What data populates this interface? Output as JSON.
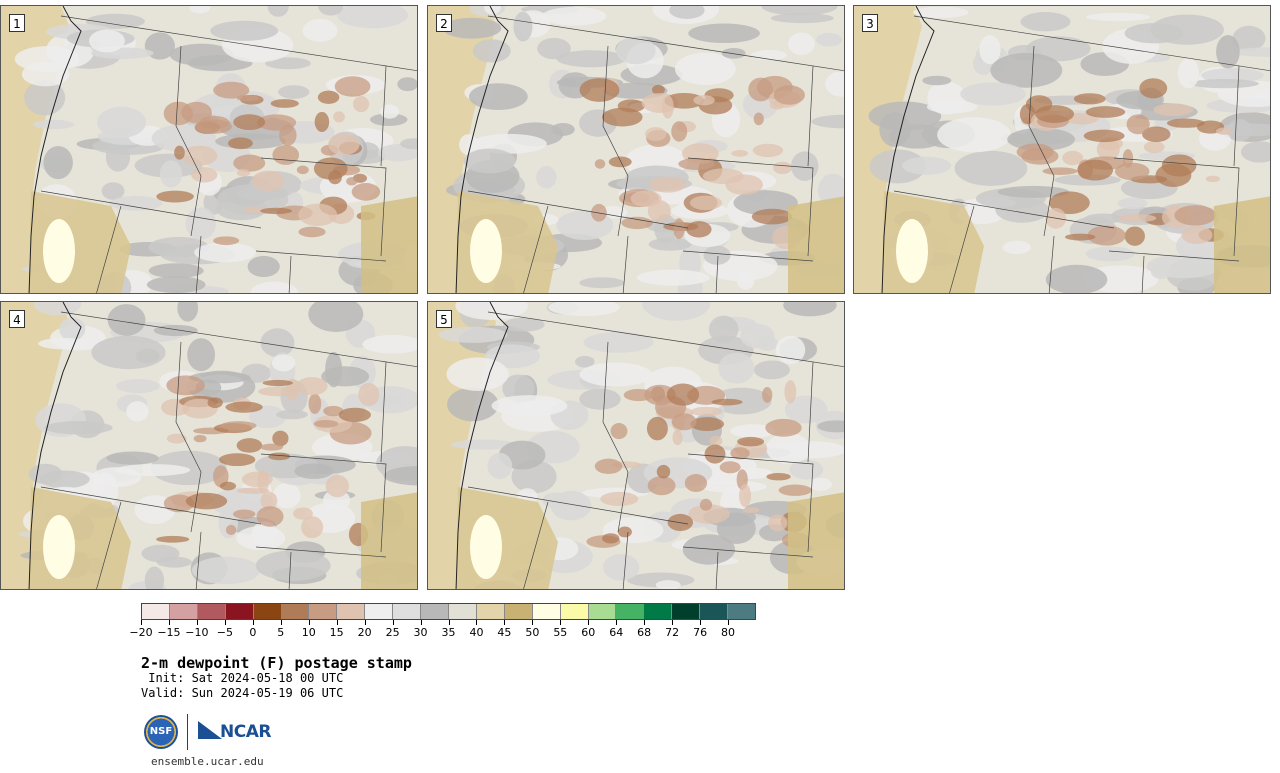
{
  "panels": [
    {
      "label": "1"
    },
    {
      "label": "2"
    },
    {
      "label": "3"
    },
    {
      "label": "4"
    },
    {
      "label": "5"
    }
  ],
  "colorbar": {
    "colors": [
      "#f5e9e7",
      "#d4a0a2",
      "#b05a5f",
      "#8a1520",
      "#8b4513",
      "#b07c58",
      "#c79c83",
      "#dfc3b0",
      "#eeeeee",
      "#dedede",
      "#b8b8b8",
      "#e2e0d4",
      "#e3d4a9",
      "#c8b173",
      "#fffde4",
      "#fafaa8",
      "#a8dc92",
      "#46b364",
      "#007b47",
      "#003f2c",
      "#1a5557",
      "#4d7b82"
    ],
    "tick_labels": [
      "−20",
      "−15",
      "−10",
      "−5",
      "0",
      "5",
      "10",
      "15",
      "20",
      "25",
      "30",
      "35",
      "40",
      "45",
      "50",
      "55",
      "60",
      "64",
      "68",
      "72",
      "76",
      "80"
    ]
  },
  "title": "2-m dewpoint (F) postage stamp",
  "init_line": " Init: Sat 2024-05-18 00 UTC",
  "valid_line": "Valid: Sun 2024-05-19 06 UTC",
  "logo_nsf": "NSF",
  "logo_ncar": "NCAR",
  "site": "ensemble.ucar.edu"
}
